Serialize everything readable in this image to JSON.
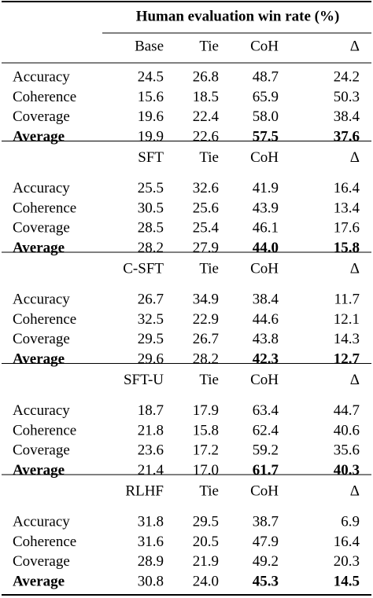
{
  "table": {
    "title": "Human evaluation win rate (%)",
    "blocks": [
      {
        "header": [
          "Base",
          "Tie",
          "CoH",
          "Δ"
        ],
        "rows": [
          [
            "Accuracy",
            "24.5",
            "26.8",
            "48.7",
            "24.2"
          ],
          [
            "Coherence",
            "15.6",
            "18.5",
            "65.9",
            "50.3"
          ],
          [
            "Coverage",
            "19.6",
            "22.4",
            "58.0",
            "38.4"
          ],
          [
            "Average",
            "19.9",
            "22.6",
            "57.5",
            "37.6"
          ]
        ]
      },
      {
        "header": [
          "SFT",
          "Tie",
          "CoH",
          "Δ"
        ],
        "rows": [
          [
            "Accuracy",
            "25.5",
            "32.6",
            "41.9",
            "16.4"
          ],
          [
            "Coherence",
            "30.5",
            "25.6",
            "43.9",
            "13.4"
          ],
          [
            "Coverage",
            "28.5",
            "25.4",
            "46.1",
            "17.6"
          ],
          [
            "Average",
            "28.2",
            "27.9",
            "44.0",
            "15.8"
          ]
        ]
      },
      {
        "header": [
          "C-SFT",
          "Tie",
          "CoH",
          "Δ"
        ],
        "rows": [
          [
            "Accuracy",
            "26.7",
            "34.9",
            "38.4",
            "11.7"
          ],
          [
            "Coherence",
            "32.5",
            "22.9",
            "44.6",
            "12.1"
          ],
          [
            "Coverage",
            "29.5",
            "26.7",
            "43.8",
            "14.3"
          ],
          [
            "Average",
            "29.6",
            "28.2",
            "42.3",
            "12.7"
          ]
        ]
      },
      {
        "header": [
          "SFT-U",
          "Tie",
          "CoH",
          "Δ"
        ],
        "rows": [
          [
            "Accuracy",
            "18.7",
            "17.9",
            "63.4",
            "44.7"
          ],
          [
            "Coherence",
            "21.8",
            "15.8",
            "62.4",
            "40.6"
          ],
          [
            "Coverage",
            "23.6",
            "17.2",
            "59.2",
            "35.6"
          ],
          [
            "Average",
            "21.4",
            "17.0",
            "61.7",
            "40.3"
          ]
        ]
      },
      {
        "header": [
          "RLHF",
          "Tie",
          "CoH",
          "Δ"
        ],
        "rows": [
          [
            "Accuracy",
            "31.8",
            "29.5",
            "38.7",
            "6.9"
          ],
          [
            "Coherence",
            "31.6",
            "20.5",
            "47.9",
            "16.4"
          ],
          [
            "Coverage",
            "28.9",
            "21.9",
            "49.2",
            "20.3"
          ],
          [
            "Average",
            "30.8",
            "24.0",
            "45.3",
            "14.5"
          ]
        ]
      }
    ]
  }
}
